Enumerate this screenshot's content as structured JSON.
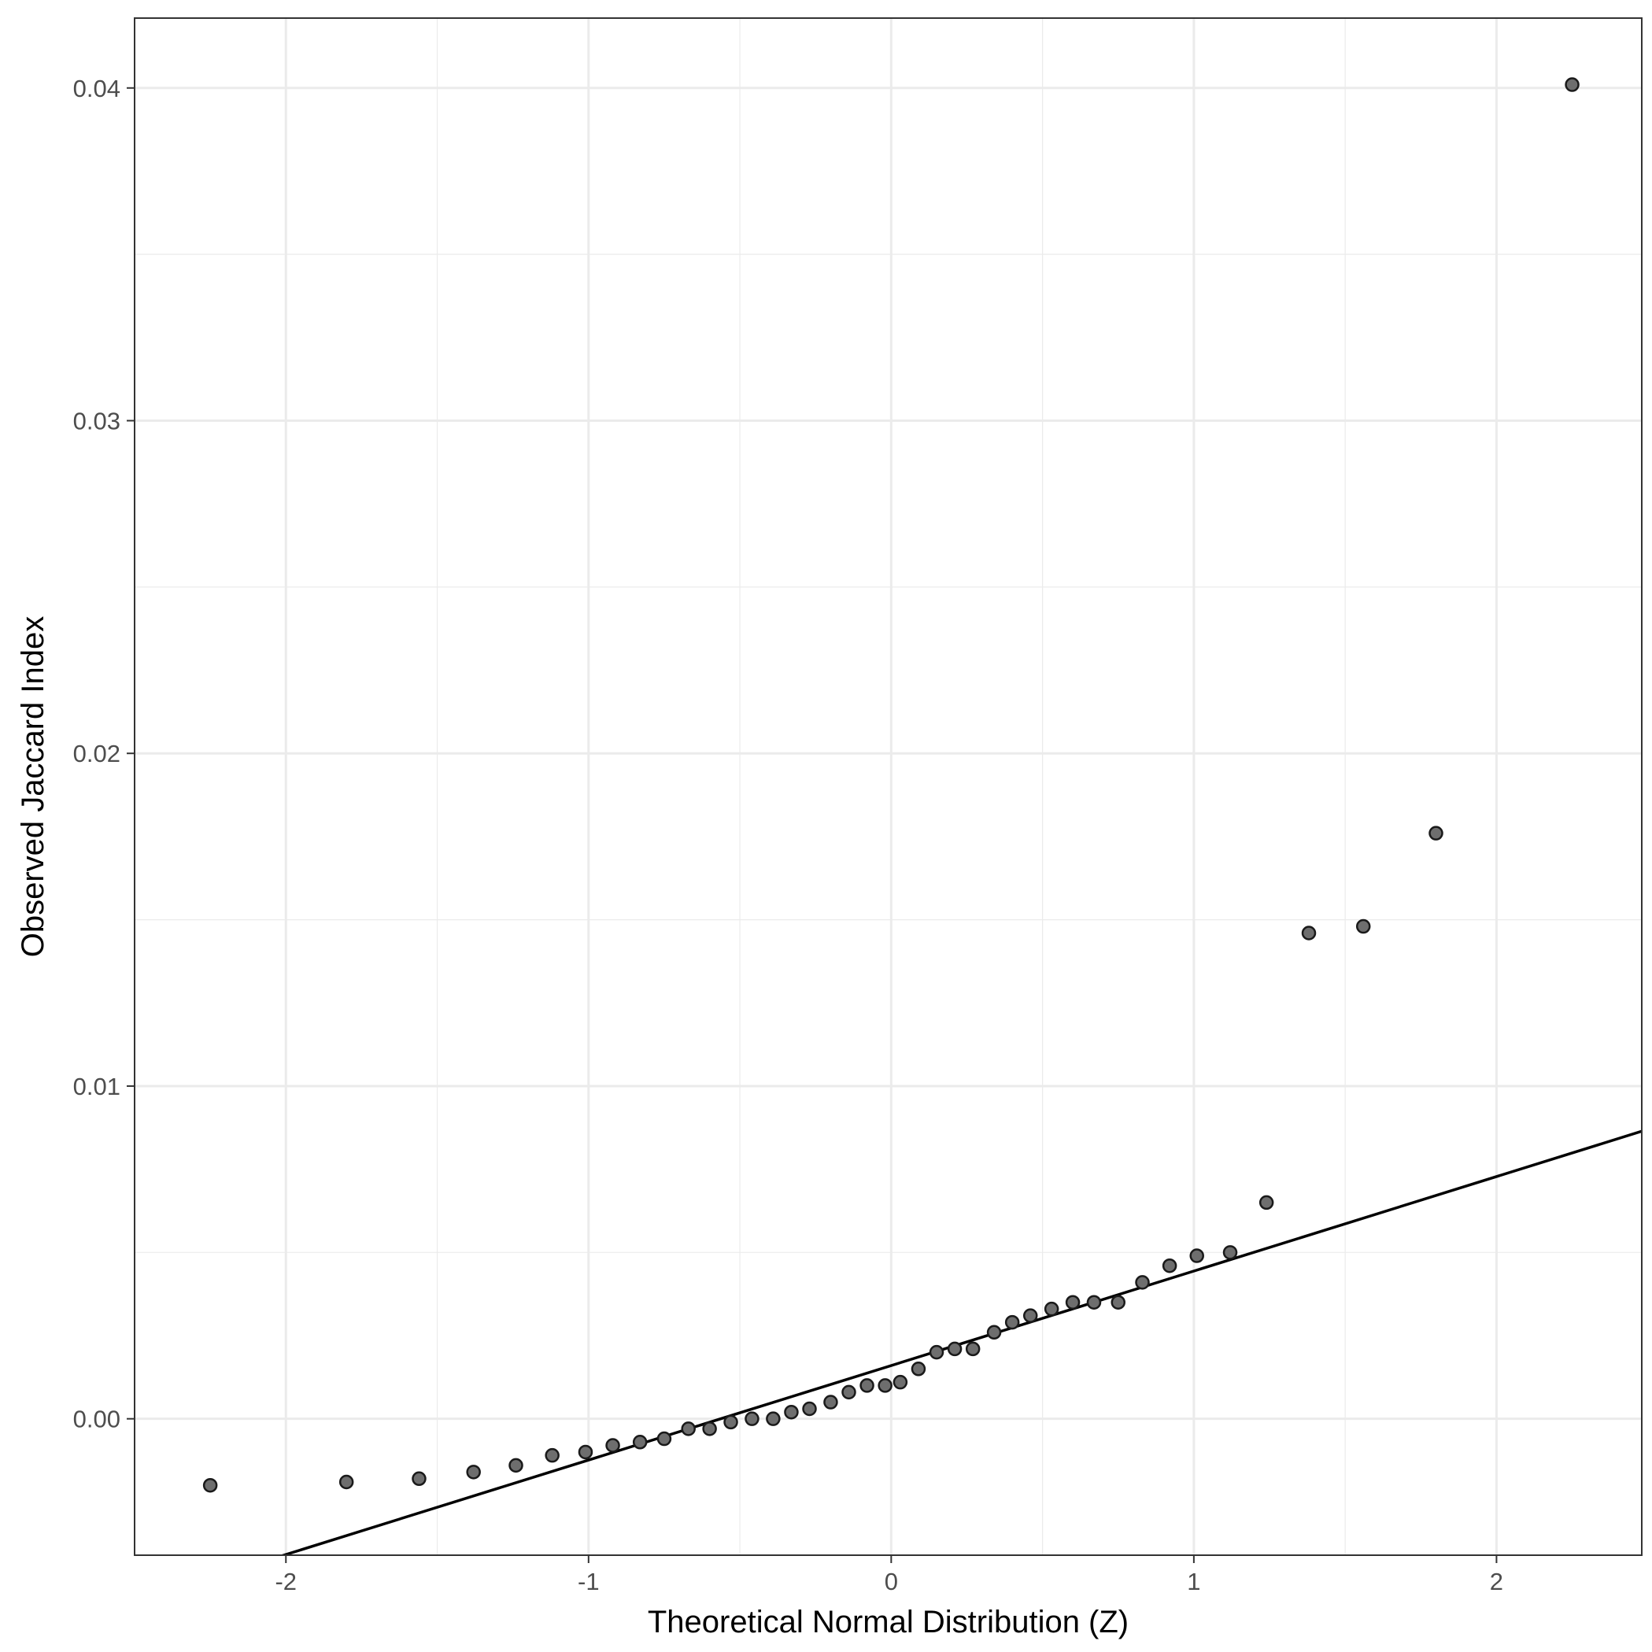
{
  "chart_data": {
    "type": "scatter",
    "title": "",
    "xlabel": "Theoretical Normal Distribution (Z)",
    "ylabel": "Observed Jaccard Index",
    "xlim": [
      -2.5,
      2.48
    ],
    "ylim": [
      -0.0041,
      0.0421
    ],
    "x_ticks": [
      -2,
      -1,
      0,
      1,
      2
    ],
    "x_tick_labels": [
      "-2",
      "-1",
      "0",
      "1",
      "2"
    ],
    "y_ticks": [
      0.0,
      0.01,
      0.02,
      0.03,
      0.04
    ],
    "y_tick_labels": [
      "0.00",
      "0.01",
      "0.02",
      "0.03",
      "0.04"
    ],
    "grid": true,
    "legend": "none",
    "colors": {
      "point_fill": "#6e6e6e",
      "point_edge": "#1a1a1a",
      "line": "#000000",
      "grid": "#ebebeb",
      "panel_border": "#333333"
    },
    "points": [
      {
        "x": -2.25,
        "y": -0.002
      },
      {
        "x": -1.8,
        "y": -0.0019
      },
      {
        "x": -1.56,
        "y": -0.0018
      },
      {
        "x": -1.38,
        "y": -0.0016
      },
      {
        "x": -1.24,
        "y": -0.0014
      },
      {
        "x": -1.12,
        "y": -0.0011
      },
      {
        "x": -1.01,
        "y": -0.001
      },
      {
        "x": -0.92,
        "y": -0.0008
      },
      {
        "x": -0.83,
        "y": -0.0007
      },
      {
        "x": -0.75,
        "y": -0.0006
      },
      {
        "x": -0.67,
        "y": -0.0003
      },
      {
        "x": -0.6,
        "y": -0.0003
      },
      {
        "x": -0.53,
        "y": -0.0001
      },
      {
        "x": -0.46,
        "y": 0.0
      },
      {
        "x": -0.39,
        "y": 0.0
      },
      {
        "x": -0.33,
        "y": 0.0002
      },
      {
        "x": -0.27,
        "y": 0.0003
      },
      {
        "x": -0.2,
        "y": 0.0005
      },
      {
        "x": -0.14,
        "y": 0.0008
      },
      {
        "x": -0.08,
        "y": 0.001
      },
      {
        "x": -0.02,
        "y": 0.001
      },
      {
        "x": 0.03,
        "y": 0.0011
      },
      {
        "x": 0.09,
        "y": 0.0015
      },
      {
        "x": 0.15,
        "y": 0.002
      },
      {
        "x": 0.21,
        "y": 0.0021
      },
      {
        "x": 0.27,
        "y": 0.0021
      },
      {
        "x": 0.34,
        "y": 0.0026
      },
      {
        "x": 0.4,
        "y": 0.0029
      },
      {
        "x": 0.46,
        "y": 0.0031
      },
      {
        "x": 0.53,
        "y": 0.0033
      },
      {
        "x": 0.6,
        "y": 0.0035
      },
      {
        "x": 0.67,
        "y": 0.0035
      },
      {
        "x": 0.75,
        "y": 0.0035
      },
      {
        "x": 0.83,
        "y": 0.0041
      },
      {
        "x": 0.92,
        "y": 0.0046
      },
      {
        "x": 1.01,
        "y": 0.0049
      },
      {
        "x": 1.12,
        "y": 0.005
      },
      {
        "x": 1.24,
        "y": 0.0065
      },
      {
        "x": 1.38,
        "y": 0.0146
      },
      {
        "x": 1.56,
        "y": 0.0148
      },
      {
        "x": 1.8,
        "y": 0.0176
      },
      {
        "x": 2.25,
        "y": 0.0401
      }
    ],
    "reference_line": {
      "intercept": 0.0016,
      "slope": 0.00284
    }
  }
}
